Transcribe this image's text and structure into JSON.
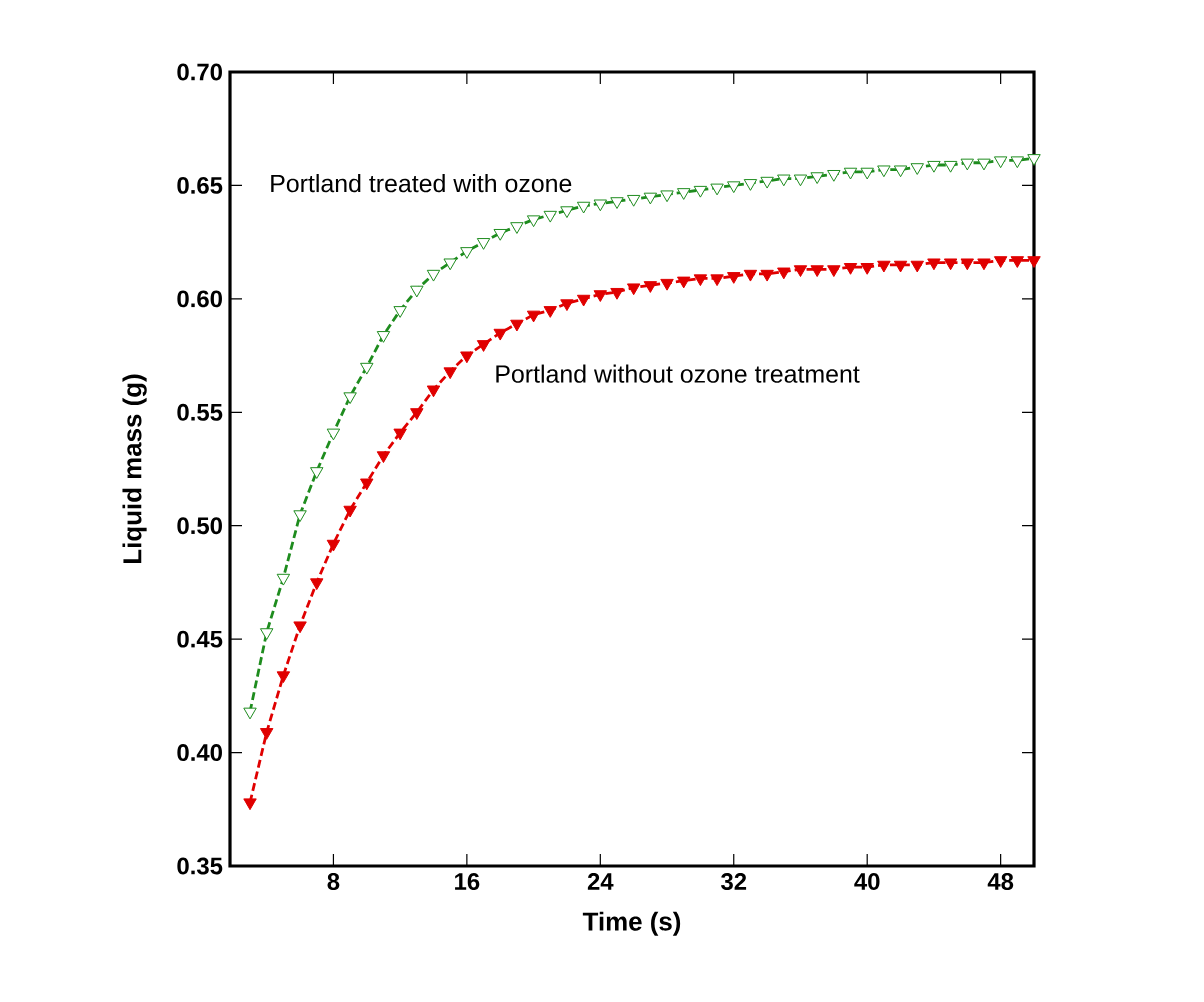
{
  "chart_data": {
    "type": "line",
    "xlabel": "Time (s)",
    "ylabel": "Liquid mass (g)",
    "xlim": [
      1.8,
      50
    ],
    "ylim": [
      0.35,
      0.7
    ],
    "xticks": [
      8,
      16,
      24,
      32,
      40,
      48
    ],
    "yticks": [
      {
        "value": 0.35,
        "label": "0.35"
      },
      {
        "value": 0.4,
        "label": "0.40"
      },
      {
        "value": 0.45,
        "label": "0.45"
      },
      {
        "value": 0.5,
        "label": "0.50"
      },
      {
        "value": 0.55,
        "label": "0.55"
      },
      {
        "value": 0.6,
        "label": "0.60"
      },
      {
        "value": 0.65,
        "label": "0.65"
      },
      {
        "value": 0.7,
        "label": "0.70"
      }
    ],
    "x": [
      3,
      4,
      5,
      6,
      7,
      8,
      9,
      10,
      11,
      12,
      13,
      14,
      15,
      16,
      17,
      18,
      19,
      20,
      21,
      22,
      23,
      24,
      25,
      26,
      27,
      28,
      29,
      30,
      31,
      32,
      33,
      34,
      35,
      36,
      37,
      38,
      39,
      40,
      41,
      42,
      43,
      44,
      45,
      46,
      47,
      48,
      49,
      50
    ],
    "marker": "triangle",
    "line_style": "dashed",
    "grid": false,
    "legend": false,
    "series": [
      {
        "name": "Portland treated with ozone",
        "color": "#1e8c1e",
        "values": [
          0.418,
          0.453,
          0.477,
          0.505,
          0.524,
          0.541,
          0.557,
          0.57,
          0.584,
          0.595,
          0.604,
          0.611,
          0.616,
          0.621,
          0.625,
          0.629,
          0.632,
          0.635,
          0.637,
          0.639,
          0.641,
          0.642,
          0.643,
          0.644,
          0.645,
          0.646,
          0.647,
          0.648,
          0.649,
          0.65,
          0.651,
          0.652,
          0.653,
          0.653,
          0.654,
          0.655,
          0.656,
          0.656,
          0.657,
          0.657,
          0.658,
          0.659,
          0.659,
          0.66,
          0.66,
          0.661,
          0.661,
          0.662
        ]
      },
      {
        "name": "Portland without ozone treatment",
        "color": "#e00000",
        "values": [
          0.378,
          0.409,
          0.434,
          0.456,
          0.475,
          0.492,
          0.507,
          0.519,
          0.531,
          0.541,
          0.55,
          0.56,
          0.568,
          0.575,
          0.58,
          0.585,
          0.589,
          0.593,
          0.595,
          0.598,
          0.6,
          0.602,
          0.603,
          0.605,
          0.606,
          0.607,
          0.608,
          0.609,
          0.609,
          0.61,
          0.611,
          0.611,
          0.612,
          0.613,
          0.613,
          0.613,
          0.614,
          0.614,
          0.615,
          0.615,
          0.615,
          0.616,
          0.616,
          0.616,
          0.616,
          0.617,
          0.617,
          0.617
        ]
      }
    ]
  }
}
